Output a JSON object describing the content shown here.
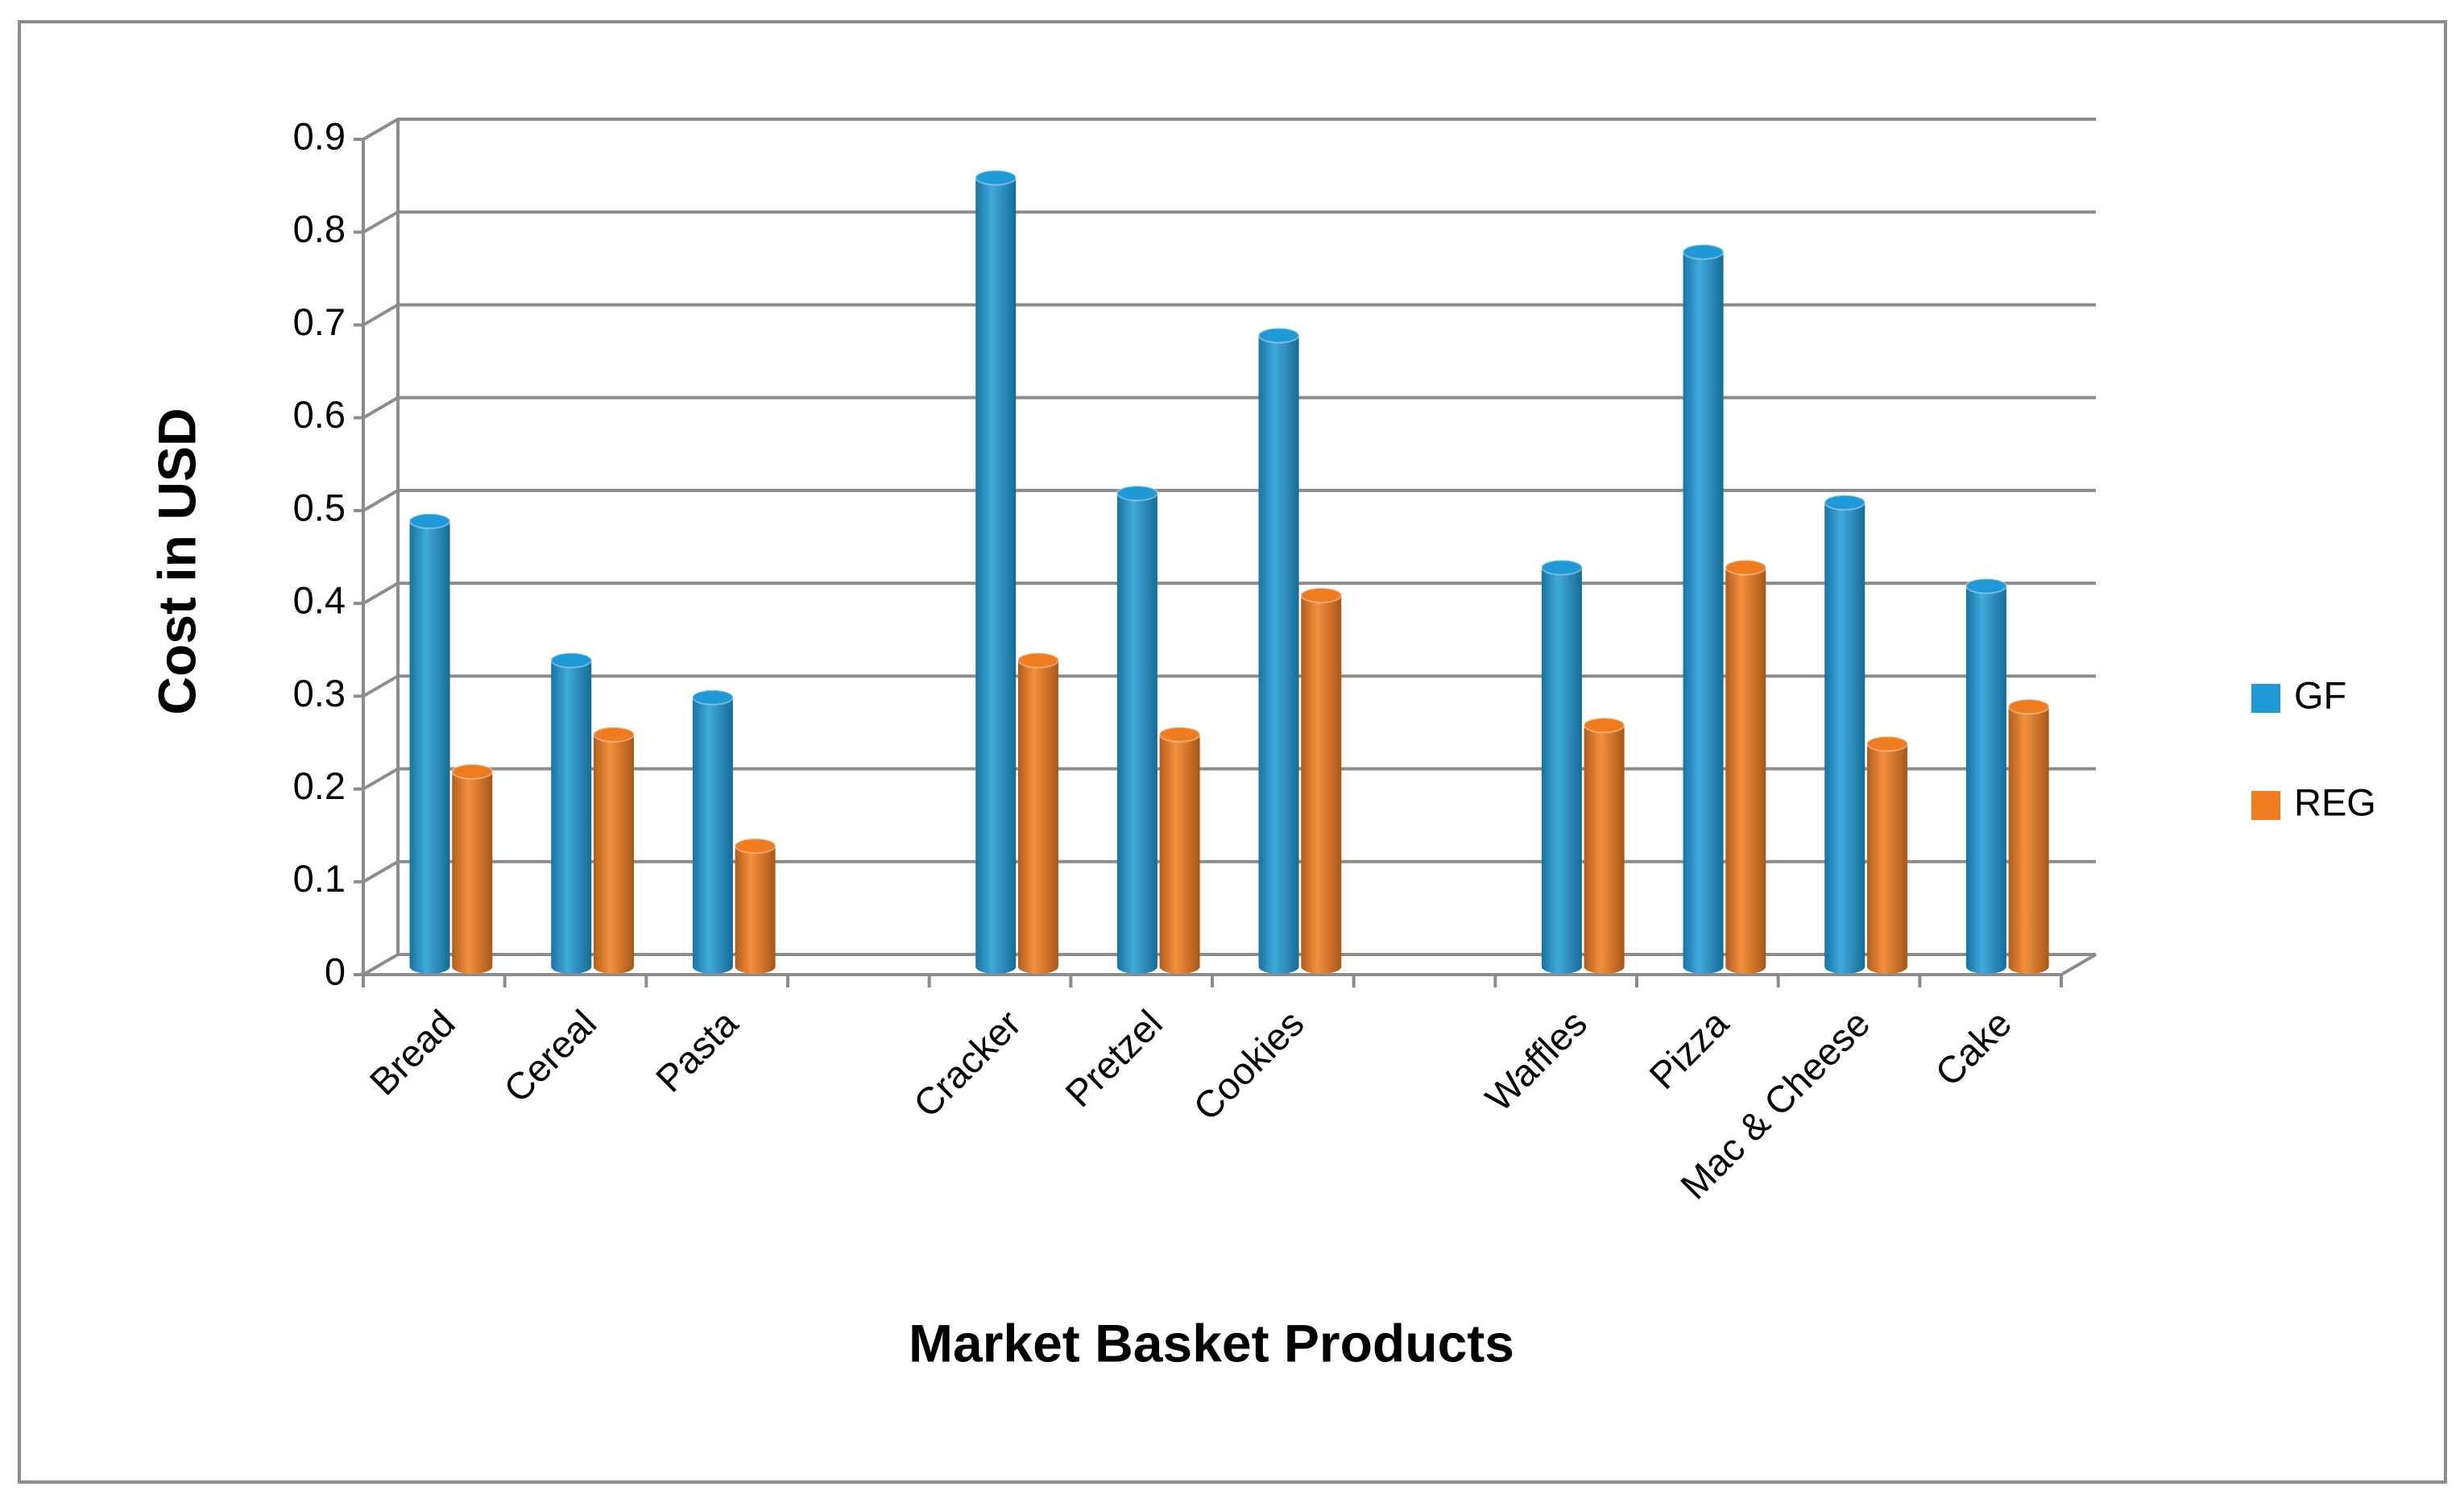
{
  "chart_data": {
    "type": "bar",
    "x_label": "Market Basket Products",
    "y_label": "Cost in USD",
    "categories": [
      "Bread",
      "Cereal",
      "Pasta",
      null,
      "Cracker",
      "Pretzel",
      "Cookies",
      null,
      "Waffles",
      "Pizza",
      "Mac & Cheese",
      "Cake"
    ],
    "series": [
      {
        "name": "GF",
        "color": "#1f9ad6",
        "values": [
          0.48,
          0.33,
          0.29,
          null,
          0.85,
          0.51,
          0.68,
          null,
          0.43,
          0.77,
          0.5,
          0.41
        ]
      },
      {
        "name": "REG",
        "color": "#f07c20",
        "values": [
          0.21,
          0.25,
          0.13,
          null,
          0.33,
          0.25,
          0.4,
          null,
          0.26,
          0.43,
          0.24,
          0.28
        ]
      }
    ],
    "ylim": [
      0,
      0.9
    ],
    "yticks": [
      0,
      0.1,
      0.2,
      0.3,
      0.4,
      0.5,
      0.6,
      0.7,
      0.8,
      0.9
    ],
    "grid": true,
    "legend": "right"
  }
}
